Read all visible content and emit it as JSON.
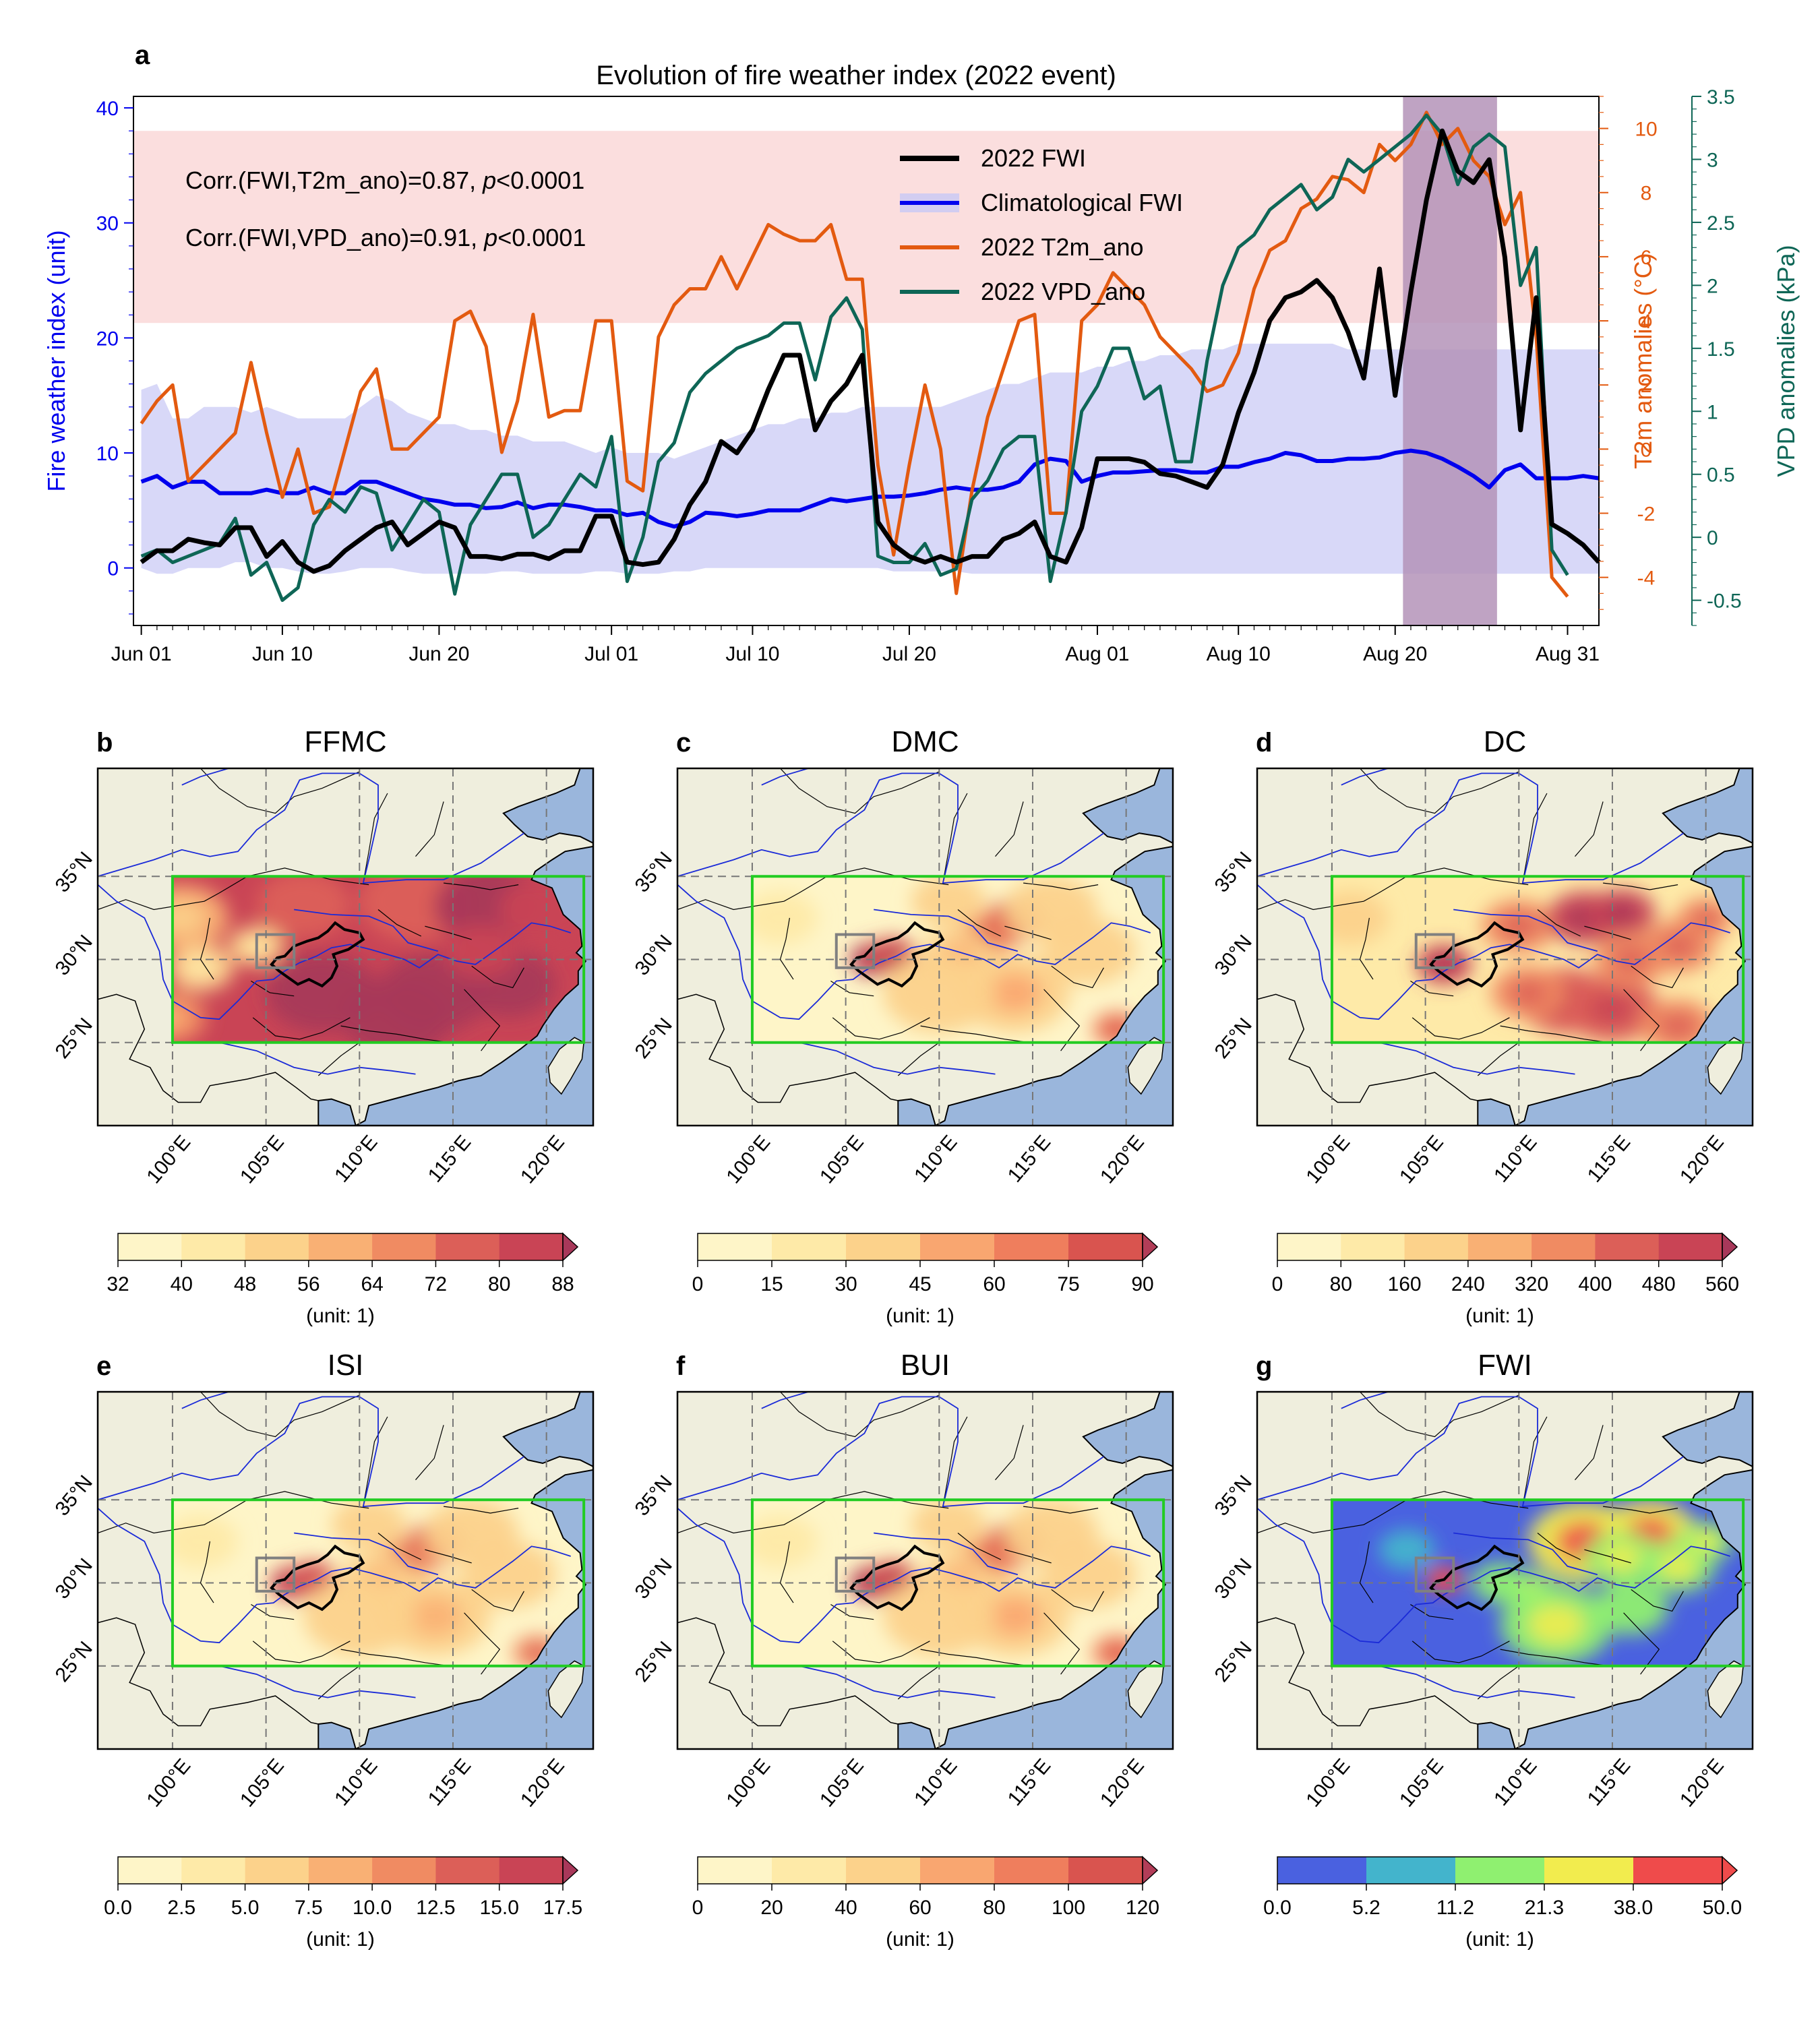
{
  "colors": {
    "fwi2022": "#000000",
    "climatology": "#0000ee",
    "t2m": "#e35a10",
    "vpd": "#0e6656",
    "band_fill": "#c8c8f5",
    "high_band": "#fbdede",
    "event_shade": "#b493b8",
    "land": "#efeedd",
    "ocean": "#9ab6dc",
    "domain_box": "#22cc22"
  },
  "chart_data": [
    {
      "type": "line",
      "panel_letter": "a",
      "title": "Evolution of fire weather index (2022 event)",
      "ylabel_left": "Fire weather index (unit)",
      "ylabel_right1": "T2m anomalies (°C)",
      "ylabel_right2": "VPD anomalies (kPa)",
      "x_tick_labels": [
        "Jun 01",
        "Jun 10",
        "Jun 20",
        "Jul 01",
        "Jul 10",
        "Jul 20",
        "Aug 01",
        "Aug 10",
        "Aug 20",
        "Aug 31"
      ],
      "x_tick_days": [
        0,
        9,
        19,
        30,
        39,
        49,
        61,
        70,
        80,
        91
      ],
      "ylim_left": [
        -5,
        41
      ],
      "yticks_left": [
        0,
        10,
        20,
        30,
        40
      ],
      "ylim_t2m": [
        -5.5,
        11
      ],
      "yticks_t2m": [
        -4,
        -2,
        0,
        2,
        4,
        6,
        8,
        10
      ],
      "ylim_vpd": [
        -0.7,
        3.5
      ],
      "yticks_vpd": [
        -0.5,
        0,
        0.5,
        1,
        1.5,
        2,
        2.5,
        3,
        3.5
      ],
      "high_band_fwi": [
        21.3,
        38
      ],
      "event_shading": {
        "start": "Aug 21",
        "end": "Aug 26"
      },
      "annotations": [
        {
          "prefix": "Corr.(FWI,T2m_ano)=0.87, ",
          "italic": "p",
          "suffix": "<0.0001"
        },
        {
          "prefix": "Corr.(FWI,VPD_ano)=0.91, ",
          "italic": "p",
          "suffix": "<0.0001"
        }
      ],
      "legend": [
        "2022 FWI",
        "Climatological FWI",
        "2022 T2m_ano",
        "2022 VPD_ano"
      ],
      "series": [
        {
          "name": "2022 FWI",
          "axis": "left",
          "values": [
            0.5,
            1.5,
            1.5,
            2.5,
            2.2,
            2,
            3.5,
            3.5,
            1,
            2.3,
            0.5,
            -0.3,
            0.2,
            1.5,
            2.5,
            3.5,
            4,
            2,
            3,
            4,
            3.5,
            1,
            1,
            0.8,
            1.2,
            1.2,
            0.8,
            1.5,
            1.5,
            4.5,
            4.5,
            0.5,
            0.3,
            0.5,
            2.5,
            5.5,
            7.5,
            11,
            10,
            12,
            15.5,
            18.5,
            18.5,
            12,
            14.5,
            16,
            18.5,
            4,
            2,
            1,
            0.5,
            1,
            0.5,
            1,
            1,
            2.5,
            3,
            4,
            1,
            0.5,
            3.5,
            9.5,
            9.5,
            9.5,
            9.2,
            8.2,
            8,
            7.5,
            7,
            9,
            13.5,
            17,
            21.5,
            23.5,
            24,
            25,
            23.5,
            20.5,
            16.5,
            26,
            15,
            24,
            32,
            38,
            34.5,
            33.5,
            35.5,
            27,
            12,
            23.5,
            3.8,
            3,
            2,
            0.5
          ]
        },
        {
          "name": "Climatological FWI",
          "axis": "left",
          "values": [
            7.5,
            8,
            7,
            7.5,
            7.5,
            6.5,
            6.5,
            6.5,
            6.8,
            6.5,
            6.5,
            7,
            6.5,
            6.5,
            7.5,
            7.5,
            7,
            6.5,
            6,
            5.8,
            5.5,
            5.5,
            5.2,
            5.3,
            5.7,
            5.2,
            5.5,
            5.5,
            5.3,
            5,
            5,
            4.6,
            4.8,
            4,
            3.6,
            4,
            4.8,
            4.7,
            4.5,
            4.7,
            5,
            5,
            5,
            5.5,
            6,
            5.8,
            6,
            6.2,
            6.2,
            6.3,
            6.5,
            6.8,
            7,
            6.8,
            6.8,
            7,
            7.5,
            9,
            9.5,
            9.3,
            7.5,
            8,
            8.3,
            8.3,
            8.4,
            8.5,
            8.5,
            8.3,
            8.3,
            8.8,
            8.8,
            9.2,
            9.5,
            10,
            9.8,
            9.3,
            9.3,
            9.5,
            9.5,
            9.6,
            10,
            10.2,
            10,
            9.5,
            8.8,
            8,
            7,
            8.5,
            9,
            7.8,
            7.8,
            7.8,
            8,
            7.8
          ]
        },
        {
          "name": "Climatological FWI range (lower)",
          "axis": "left",
          "values": [
            0,
            -0.5,
            -0.5,
            0,
            0,
            0,
            0.5,
            0.5,
            0,
            0,
            -0.3,
            -0.5,
            -0.5,
            -0.3,
            0,
            0,
            0,
            -0.3,
            -0.5,
            -0.5,
            -0.5,
            -0.5,
            -0.5,
            -0.3,
            -0.3,
            -0.5,
            -0.5,
            -0.5,
            -0.5,
            -0.3,
            -0.3,
            -0.5,
            -0.5,
            -0.5,
            -0.3,
            -0.3,
            0,
            0,
            0,
            0,
            0,
            0,
            0,
            0,
            0,
            0,
            0,
            0,
            -0.3,
            -0.3,
            -0.3,
            -0.3,
            -0.3,
            -0.5,
            -0.5,
            -0.5,
            -0.5,
            -0.5,
            -0.5,
            -0.5,
            -0.5,
            -0.5,
            -0.5,
            -0.5,
            -0.5,
            -0.5,
            -0.5,
            -0.5,
            -0.5,
            -0.5,
            -0.5,
            -0.5,
            -0.5,
            -0.5,
            -0.5,
            -0.5,
            -0.5,
            -0.5,
            -0.5,
            -0.5,
            -0.5,
            -0.5,
            -0.5,
            -0.5,
            -0.5,
            -0.5,
            -0.5,
            -0.5,
            -0.5,
            -0.5,
            -0.5,
            -0.5,
            -0.5,
            -0.5
          ]
        },
        {
          "name": "Climatological FWI range (upper)",
          "axis": "left",
          "values": [
            15.5,
            16,
            13,
            13,
            14,
            14,
            14,
            13.5,
            14,
            13.5,
            13,
            13,
            13,
            13,
            14,
            15,
            14.5,
            13.5,
            13,
            12.5,
            12.5,
            12,
            12,
            11.5,
            11.5,
            11,
            11,
            11,
            10.5,
            10,
            10.5,
            10,
            10,
            10,
            9.5,
            10,
            10.5,
            11,
            11.5,
            12,
            12.5,
            12.5,
            13,
            13,
            13.5,
            13.5,
            14,
            14,
            14,
            14,
            14,
            14,
            14.5,
            15,
            15.5,
            16,
            16,
            16.5,
            17,
            17,
            17,
            17.5,
            17.5,
            18,
            18,
            18.5,
            18.5,
            19,
            19,
            19,
            19.5,
            19.5,
            19.5,
            19.5,
            19.5,
            19.5,
            19.5,
            19,
            19,
            19,
            19,
            19,
            19,
            19,
            19,
            19,
            19,
            19,
            19,
            19,
            19,
            19,
            19,
            19
          ]
        },
        {
          "name": "2022 T2m_ano",
          "axis": "t2m",
          "values": [
            0.8,
            1.5,
            2,
            -1,
            -0.5,
            0,
            0.5,
            2.7,
            0.5,
            -1.5,
            0,
            -2,
            -1.8,
            0,
            1.8,
            2.5,
            0,
            0,
            0.5,
            1,
            4,
            4.3,
            3.2,
            -0.1,
            1.5,
            4.2,
            1,
            1.2,
            1.2,
            4,
            4,
            -1,
            -1.3,
            3.5,
            4.5,
            5,
            5,
            6,
            5,
            6,
            7,
            6.7,
            6.5,
            6.5,
            7,
            5.3,
            5.3,
            -0.5,
            -3.3,
            -0.5,
            2,
            0,
            -4.5,
            -1.3,
            1,
            2.5,
            4,
            4.2,
            -2,
            -2,
            4,
            4.5,
            5.5,
            5,
            4.5,
            3.5,
            3,
            2.5,
            1.8,
            2,
            3,
            5,
            6.2,
            6.5,
            7.5,
            7.8,
            8.5,
            8.4,
            8,
            9.5,
            9,
            9.5,
            10.5,
            9.5,
            10,
            9,
            8.5,
            7,
            8,
            3.5,
            -4,
            -4.6
          ]
        },
        {
          "name": "2022 VPD_ano",
          "axis": "vpd",
          "values": [
            -0.15,
            -0.1,
            -0.2,
            -0.15,
            -0.1,
            -0.05,
            0.15,
            -0.3,
            -0.2,
            -0.5,
            -0.4,
            0.1,
            0.3,
            0.2,
            0.4,
            0.35,
            -0.1,
            0.1,
            0.3,
            0.2,
            -0.45,
            0.1,
            0.3,
            0.5,
            0.5,
            0,
            0.1,
            0.3,
            0.5,
            0.4,
            0.8,
            -0.35,
            0,
            0.6,
            0.75,
            1.15,
            1.3,
            1.4,
            1.5,
            1.55,
            1.6,
            1.7,
            1.7,
            1.25,
            1.75,
            1.9,
            1.65,
            -0.15,
            -0.2,
            -0.2,
            -0.05,
            -0.3,
            -0.25,
            0.3,
            0.45,
            0.7,
            0.8,
            0.8,
            -0.35,
            0.2,
            1,
            1.2,
            1.5,
            1.5,
            1.1,
            1.2,
            0.6,
            0.6,
            1.4,
            2,
            2.3,
            2.4,
            2.6,
            2.7,
            2.8,
            2.6,
            2.7,
            3.0,
            2.9,
            3.0,
            3.1,
            3.2,
            3.35,
            3.2,
            2.8,
            3.1,
            3.2,
            3.1,
            2.0,
            2.3,
            -0.1,
            -0.3
          ]
        }
      ]
    },
    {
      "type": "heatmap",
      "panel_letter": "b",
      "title": "FFMC",
      "colorbar_ticks": [
        "32",
        "40",
        "48",
        "56",
        "64",
        "72",
        "80",
        "88"
      ],
      "colorbar_colors": [
        "#fef5c8",
        "#feeaa8",
        "#fcd28b",
        "#f9b074",
        "#f08b62",
        "#dc5f58",
        "#c94455",
        "#a8385a"
      ],
      "colorbar_label": "(unit: 1)",
      "scheme": "warm_high"
    },
    {
      "type": "heatmap",
      "panel_letter": "c",
      "title": "DMC",
      "colorbar_ticks": [
        "0",
        "15",
        "30",
        "45",
        "60",
        "75",
        "90"
      ],
      "colorbar_colors": [
        "#fef5c8",
        "#feeaa8",
        "#fcd28b",
        "#f9a670",
        "#ef7e5d",
        "#d9544f",
        "#b23d58"
      ],
      "colorbar_label": "(unit: 1)",
      "scheme": "warm_low"
    },
    {
      "type": "heatmap",
      "panel_letter": "d",
      "title": "DC",
      "colorbar_ticks": [
        "0",
        "80",
        "160",
        "240",
        "320",
        "400",
        "480",
        "560"
      ],
      "colorbar_colors": [
        "#fef5c8",
        "#feeaa8",
        "#fcd28b",
        "#f9b074",
        "#f08b62",
        "#dc5f58",
        "#c94455",
        "#a8385a"
      ],
      "colorbar_label": "(unit: 1)",
      "scheme": "warm_mid"
    },
    {
      "type": "heatmap",
      "panel_letter": "e",
      "title": "ISI",
      "colorbar_ticks": [
        "0.0",
        "2.5",
        "5.0",
        "7.5",
        "10.0",
        "12.5",
        "15.0",
        "17.5"
      ],
      "colorbar_colors": [
        "#fef5c8",
        "#feeaa8",
        "#fcd28b",
        "#f9b074",
        "#f08b62",
        "#dc5f58",
        "#c94455",
        "#a8385a"
      ],
      "colorbar_label": "(unit: 1)",
      "scheme": "warm_low"
    },
    {
      "type": "heatmap",
      "panel_letter": "f",
      "title": "BUI",
      "colorbar_ticks": [
        "0",
        "20",
        "40",
        "60",
        "80",
        "100",
        "120"
      ],
      "colorbar_colors": [
        "#fef5c8",
        "#feeaa8",
        "#fcd28b",
        "#f9a670",
        "#ef7e5d",
        "#d9544f",
        "#b23d58"
      ],
      "colorbar_label": "(unit: 1)",
      "scheme": "warm_low"
    },
    {
      "type": "heatmap",
      "panel_letter": "g",
      "title": "FWI",
      "colorbar_ticks": [
        "0.0",
        "5.2",
        "11.2",
        "21.3",
        "38.0",
        "50.0"
      ],
      "colorbar_colors": [
        "#4a61e0",
        "#43b4cc",
        "#8ff070",
        "#f2ec4e",
        "#ef4b4b",
        "#ef4b4b"
      ],
      "colorbar_label": "(unit: 1)",
      "scheme": "fwi"
    }
  ],
  "map_labels": {
    "lat": [
      "35°N",
      "30°N",
      "25°N"
    ],
    "lon": [
      "100°E",
      "105°E",
      "110°E",
      "115°E",
      "120°E"
    ]
  }
}
